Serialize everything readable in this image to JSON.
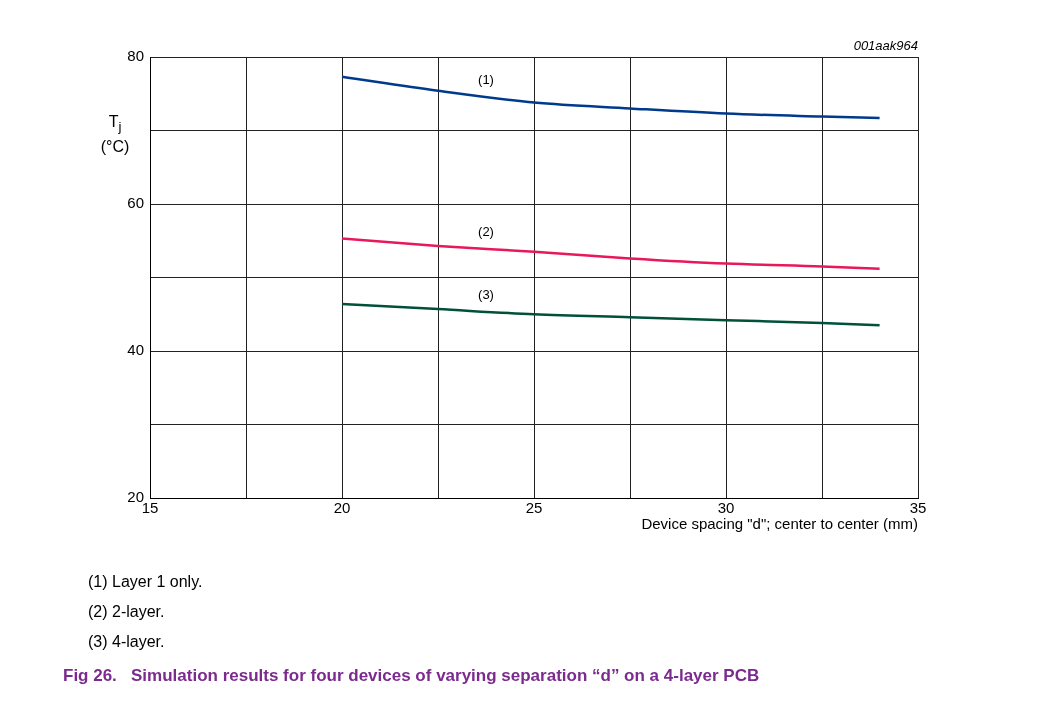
{
  "chart_data": {
    "type": "line",
    "title": "Fig 26.   Simulation results for four devices of varying separation “d” on a 4-layer PCB",
    "xlabel": "Device spacing \"d\"; center to center (mm)",
    "ylabel": "T$_{j}$ (°C)",
    "x": [
      20,
      22.5,
      25,
      27.5,
      30,
      32.5,
      34
    ],
    "series": [
      {
        "name": "(1)",
        "color": "#003a8c",
        "values": [
          77.3,
          75.4,
          73.8,
          73.0,
          72.3,
          71.9,
          71.7
        ]
      },
      {
        "name": "(2)",
        "color": "#e8185a",
        "values": [
          55.3,
          54.3,
          53.5,
          52.6,
          51.9,
          51.5,
          51.2
        ]
      },
      {
        "name": "(3)",
        "color": "#00503a",
        "values": [
          46.4,
          45.7,
          45.0,
          44.6,
          44.2,
          43.8,
          43.5
        ]
      }
    ],
    "xlim": [
      15,
      35
    ],
    "xticks": [
      15,
      {
        "value": 17.5,
        "label": null
      },
      20,
      {
        "value": 22.5,
        "label": null
      },
      25,
      {
        "value": 27.5,
        "label": null
      },
      30,
      {
        "value": 32.5,
        "label": null
      },
      35
    ],
    "ylim": [
      20,
      80
    ],
    "yticks": [
      20,
      {
        "value": 30,
        "label": null
      },
      40,
      {
        "value": 50,
        "label": null
      },
      60,
      {
        "value": 70,
        "label": null
      },
      80
    ],
    "grid": true,
    "legend": false,
    "marker": "none",
    "line_style": "solid",
    "annotations": [
      "001aak964",
      "(1)   Layer 1 only.",
      "(2)   2-layer.",
      "(3)   4-layer."
    ]
  }
}
